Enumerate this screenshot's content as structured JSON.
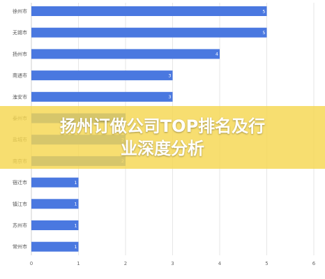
{
  "overlay": {
    "title_line1": "扬州订做公司TOP排名及行",
    "title_line2": "业深度分析"
  },
  "colors": {
    "bar": "#4a78e0",
    "grid": "#e6e6e6",
    "banner": "#f5d750"
  },
  "chart_data": {
    "type": "bar",
    "orientation": "horizontal",
    "categories": [
      "徐州市",
      "无锡市",
      "扬州市",
      "南通市",
      "淮安市",
      "泰州市",
      "盐城市",
      "南京市",
      "宿迁市",
      "镇江市",
      "苏州市",
      "常州市"
    ],
    "values": [
      5,
      5,
      4,
      3,
      3,
      2,
      2,
      2,
      1,
      1,
      1,
      1
    ],
    "xlim": [
      0,
      6
    ],
    "xticks": [
      0,
      1,
      2,
      3,
      4,
      5,
      6
    ],
    "grid": true
  }
}
